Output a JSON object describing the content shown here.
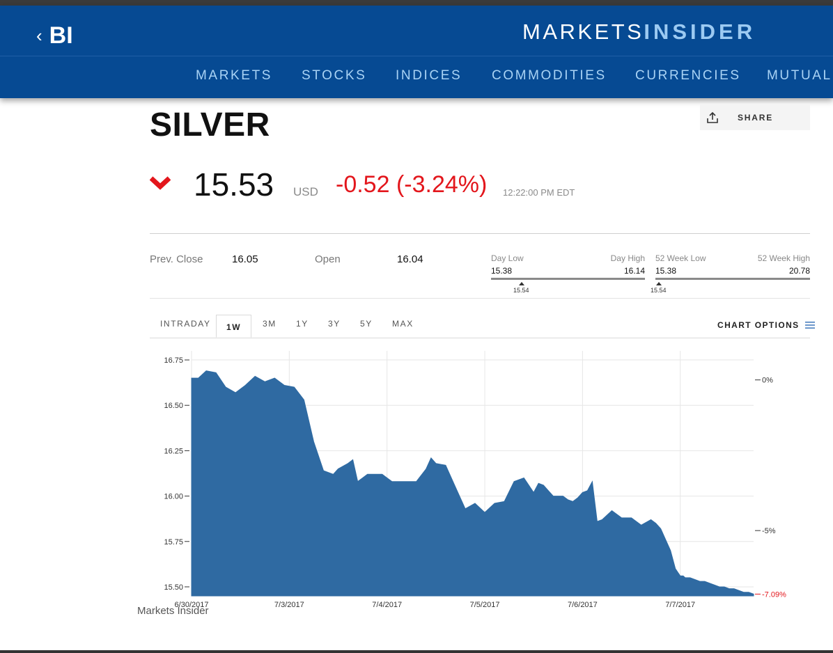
{
  "header": {
    "back_label": "BI",
    "brand_part1": "MARKETS",
    "brand_part2": "INSIDER",
    "nav": [
      "MARKETS",
      "STOCKS",
      "INDICES",
      "COMMODITIES",
      "CURRENCIES",
      "MUTUAL"
    ]
  },
  "instrument": {
    "name": "SILVER",
    "share_label": "SHARE",
    "price": "15.53",
    "currency": "USD",
    "change": "-0.52 (-3.24%)",
    "time": "12:22:00 PM EDT",
    "direction_icon": "chevron-down-icon",
    "down_color": "#e3161c"
  },
  "stats": {
    "prev_close_label": "Prev. Close",
    "prev_close": "16.05",
    "open_label": "Open",
    "open": "16.04",
    "day_low_label": "Day Low",
    "day_low": "15.38",
    "day_high_label": "Day High",
    "day_high": "16.14",
    "day_marker": "15.54",
    "week52_low_label": "52 Week Low",
    "week52_low": "15.38",
    "week52_high_label": "52 Week High",
    "week52_high": "20.78",
    "week52_marker": "15.54"
  },
  "tabs": {
    "items": [
      "INTRADAY",
      "1W",
      "3M",
      "1Y",
      "3Y",
      "5Y",
      "MAX"
    ],
    "active": "1W",
    "chart_options_label": "CHART OPTIONS"
  },
  "chart_data": {
    "type": "area",
    "x_tick_labels": [
      "6/30/2017",
      "7/3/2017",
      "7/4/2017",
      "7/5/2017",
      "7/6/2017",
      "7/7/2017"
    ],
    "y_ticks": [
      16.75,
      16.5,
      16.25,
      16.0,
      15.75,
      15.5
    ],
    "y_tick_labels": [
      "16.75",
      "16.50",
      "16.25",
      "16.00",
      "15.75",
      "15.50"
    ],
    "ylim": [
      15.45,
      16.8
    ],
    "xlim": [
      0,
      5.75
    ],
    "right_ticks": [
      {
        "label": "0%",
        "value": 16.64
      },
      {
        "label": "-5%",
        "value": 15.81
      },
      {
        "label": "-7.09%",
        "value": 15.46,
        "color": "#e3161c"
      }
    ],
    "fill_color": "#2f6aa2",
    "grid": true,
    "x": [
      0,
      0.07,
      0.15,
      0.25,
      0.35,
      0.45,
      0.55,
      0.65,
      0.75,
      0.85,
      0.95,
      1.05,
      1.15,
      1.25,
      1.35,
      1.45,
      1.5,
      1.6,
      1.65,
      1.7,
      1.75,
      1.8,
      1.88,
      1.95,
      2.0,
      2.05,
      2.1,
      2.15,
      2.2,
      2.3,
      2.4,
      2.45,
      2.5,
      2.6,
      2.7,
      2.8,
      2.9,
      3.0,
      3.1,
      3.2,
      3.3,
      3.4,
      3.45,
      3.5,
      3.55,
      3.6,
      3.65,
      3.7,
      3.75,
      3.8,
      3.85,
      3.9,
      3.95,
      4.0,
      4.05,
      4.1,
      4.15,
      4.2,
      4.3,
      4.4,
      4.5,
      4.6,
      4.7,
      4.75,
      4.8,
      4.85,
      4.9,
      4.95,
      5.0,
      5.03,
      5.05,
      5.1,
      5.15,
      5.2,
      5.25,
      5.3,
      5.35,
      5.4,
      5.45,
      5.5,
      5.55,
      5.6,
      5.65,
      5.7,
      5.75
    ],
    "values": [
      16.65,
      16.65,
      16.69,
      16.68,
      16.6,
      16.57,
      16.61,
      16.66,
      16.63,
      16.65,
      16.61,
      16.6,
      16.53,
      16.3,
      16.14,
      16.12,
      16.15,
      16.18,
      16.2,
      16.08,
      16.1,
      16.12,
      16.12,
      16.12,
      16.1,
      16.08,
      16.08,
      16.08,
      16.08,
      16.08,
      16.15,
      16.21,
      16.18,
      16.17,
      16.05,
      15.93,
      15.96,
      15.91,
      15.96,
      15.97,
      16.08,
      16.1,
      16.06,
      16.02,
      16.07,
      16.06,
      16.03,
      16.0,
      16.0,
      16.0,
      15.98,
      15.97,
      15.99,
      16.02,
      16.03,
      16.08,
      15.86,
      15.87,
      15.92,
      15.88,
      15.88,
      15.84,
      15.87,
      15.85,
      15.82,
      15.76,
      15.7,
      15.6,
      15.56,
      15.56,
      15.55,
      15.55,
      15.54,
      15.53,
      15.53,
      15.52,
      15.51,
      15.5,
      15.5,
      15.49,
      15.49,
      15.48,
      15.47,
      15.47,
      15.46
    ]
  },
  "footer": {
    "credit": "Markets Insider"
  }
}
